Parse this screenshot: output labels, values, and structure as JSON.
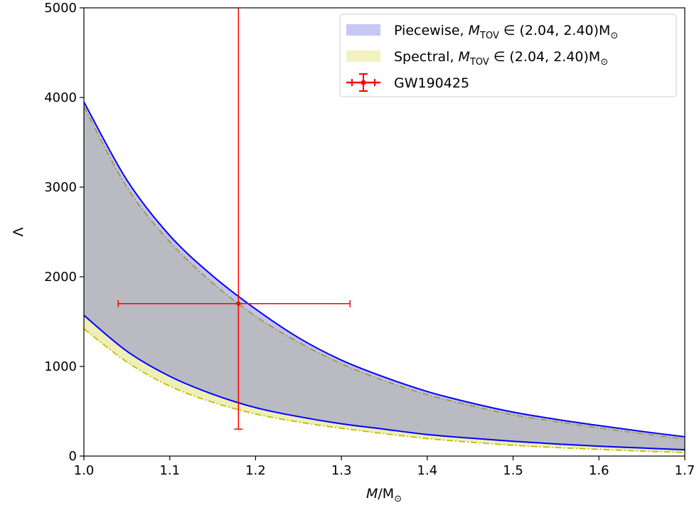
{
  "chart_data": {
    "type": "area",
    "xlabel_var": "M",
    "xlabel_unit": "/M",
    "xlabel_sub": "⊙",
    "ylabel": "Λ",
    "xlim": [
      1.0,
      1.7
    ],
    "ylim": [
      0,
      5000
    ],
    "xticks": [
      "1.0",
      "1.1",
      "1.2",
      "1.3",
      "1.4",
      "1.5",
      "1.6",
      "1.7"
    ],
    "yticks": [
      "0",
      "1000",
      "2000",
      "3000",
      "4000",
      "5000"
    ],
    "grid": false,
    "legend_position": "top-right",
    "legend": [
      {
        "kind": "fill",
        "color": "#c8c8f5",
        "prefix": "Piecewise, ",
        "var": "M",
        "sub": "TOV",
        "suffix": " ∈ (2.04, 2.40)M",
        "suffix_sub": "⊙"
      },
      {
        "kind": "fill",
        "color": "#f2f2c0",
        "prefix": "Spectral, ",
        "var": "M",
        "sub": "TOV",
        "suffix": " ∈ (2.04, 2.40)M",
        "suffix_sub": "⊙"
      },
      {
        "kind": "errorbar",
        "color": "#ff0000",
        "prefix": "GW190425",
        "var": "",
        "sub": "",
        "suffix": "",
        "suffix_sub": ""
      }
    ],
    "colors": {
      "piecewise_line": "#0000ff",
      "piecewise_fill": "#7a7ad0",
      "spectral_line": "#bfbf00",
      "spectral_fill": "#eeeeb8",
      "overlap_fill": "#c0c0d6",
      "errorbar": "#ff0000"
    },
    "x": [
      1.0,
      1.05,
      1.1,
      1.15,
      1.2,
      1.25,
      1.3,
      1.35,
      1.4,
      1.45,
      1.5,
      1.55,
      1.6,
      1.65,
      1.7
    ],
    "series": [
      {
        "name": "Piecewise upper",
        "group": "piecewise",
        "values": [
          3950,
          3080,
          2460,
          2010,
          1640,
          1320,
          1070,
          880,
          720,
          595,
          490,
          410,
          340,
          275,
          215
        ]
      },
      {
        "name": "Piecewise lower",
        "group": "piecewise",
        "values": [
          1570,
          1170,
          890,
          690,
          540,
          440,
          360,
          300,
          240,
          200,
          165,
          135,
          110,
          90,
          70
        ]
      },
      {
        "name": "Spectral upper",
        "group": "spectral",
        "values": [
          3900,
          3000,
          2390,
          1930,
          1560,
          1270,
          1030,
          840,
          685,
          565,
          460,
          385,
          315,
          250,
          190
        ]
      },
      {
        "name": "Spectral lower",
        "group": "spectral",
        "values": [
          1420,
          1050,
          780,
          600,
          470,
          380,
          310,
          250,
          195,
          155,
          120,
          95,
          75,
          55,
          40
        ]
      }
    ],
    "errorbar": {
      "name": "GW190425",
      "x": 1.18,
      "y": 1700,
      "xmin": 1.04,
      "xmax": 1.31,
      "ymin": 300,
      "ymax": 5000
    }
  }
}
